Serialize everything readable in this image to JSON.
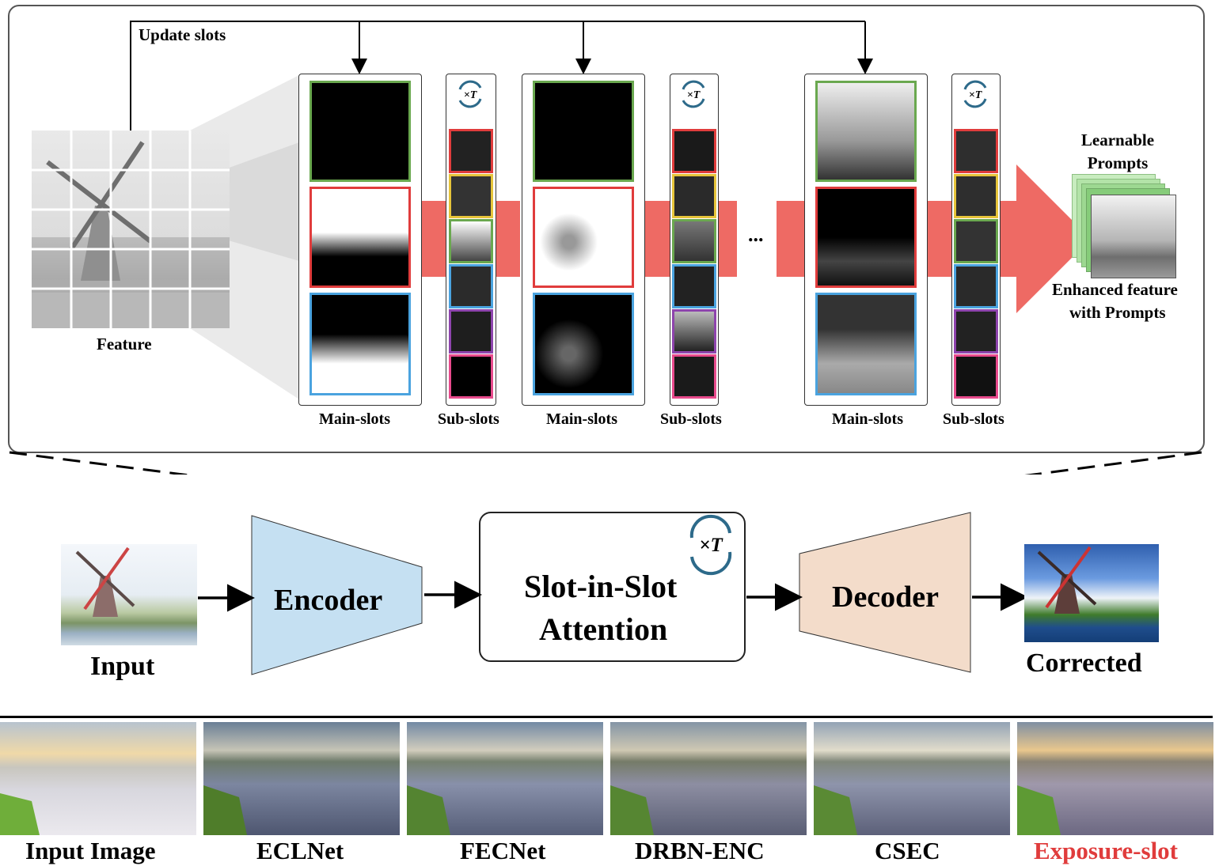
{
  "colors": {
    "arrow": "#ee6a64",
    "encoder": "#c5e0f2",
    "decoder": "#f3dcca",
    "green": "#6aa84f",
    "red": "#e03c3c",
    "blue": "#4aa3df",
    "yellow": "#e6c43a",
    "purple": "#8e44ad",
    "pink": "#e84a8c",
    "highlight": "#e03c3c"
  },
  "top": {
    "update_slots": "Update slots",
    "feature": "Feature",
    "iter_symbol": "×T",
    "ellipsis": "...",
    "learnable_prompts": "Learnable Prompts",
    "enhanced_line1": "Enhanced feature",
    "enhanced_line2": "with Prompts",
    "main_slots": "Main-slots",
    "sub_slots": "Sub-slots"
  },
  "pipeline": {
    "input": "Input",
    "encoder": "Encoder",
    "attention_line1": "Slot-in-Slot",
    "attention_line2": "Attention",
    "decoder": "Decoder",
    "corrected": "Corrected",
    "iter_symbol": "×T"
  },
  "comparison": {
    "methods": [
      "Input Image",
      "ECLNet",
      "FECNet",
      "DRBN-ENC",
      "CSEC",
      "Exposure-slot"
    ]
  }
}
